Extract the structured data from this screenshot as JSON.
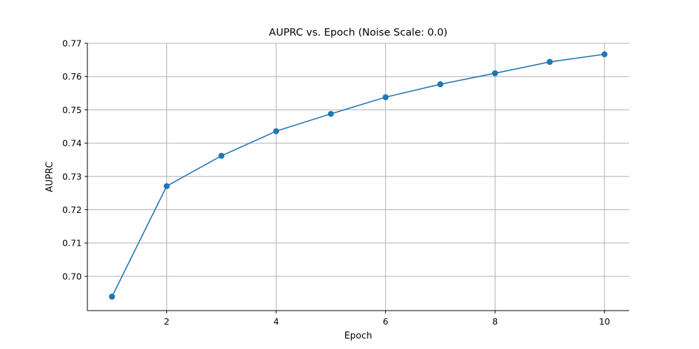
{
  "chart_data": {
    "type": "line",
    "title": "AUPRC vs. Epoch (Noise Scale: 0.0)",
    "xlabel": "Epoch",
    "ylabel": "AUPRC",
    "xlim": [
      0.55,
      10.45
    ],
    "ylim": [
      0.6897,
      0.77
    ],
    "x_ticks": [
      2,
      4,
      6,
      8,
      10
    ],
    "x_tick_labels": [
      "2",
      "4",
      "6",
      "8",
      "10"
    ],
    "y_ticks": [
      0.7,
      0.71,
      0.72,
      0.73,
      0.74,
      0.75,
      0.76,
      0.77
    ],
    "y_tick_labels": [
      "0.70",
      "0.71",
      "0.72",
      "0.73",
      "0.74",
      "0.75",
      "0.76",
      "0.77"
    ],
    "grid": true,
    "line_color": "#1f77b4",
    "marker": "circle",
    "series": [
      {
        "x": [
          1,
          2,
          3,
          4,
          5,
          6,
          7,
          8,
          9,
          10
        ],
        "values": [
          0.6939,
          0.7271,
          0.7362,
          0.7436,
          0.7488,
          0.7538,
          0.7577,
          0.761,
          0.7644,
          0.7667
        ]
      }
    ]
  }
}
